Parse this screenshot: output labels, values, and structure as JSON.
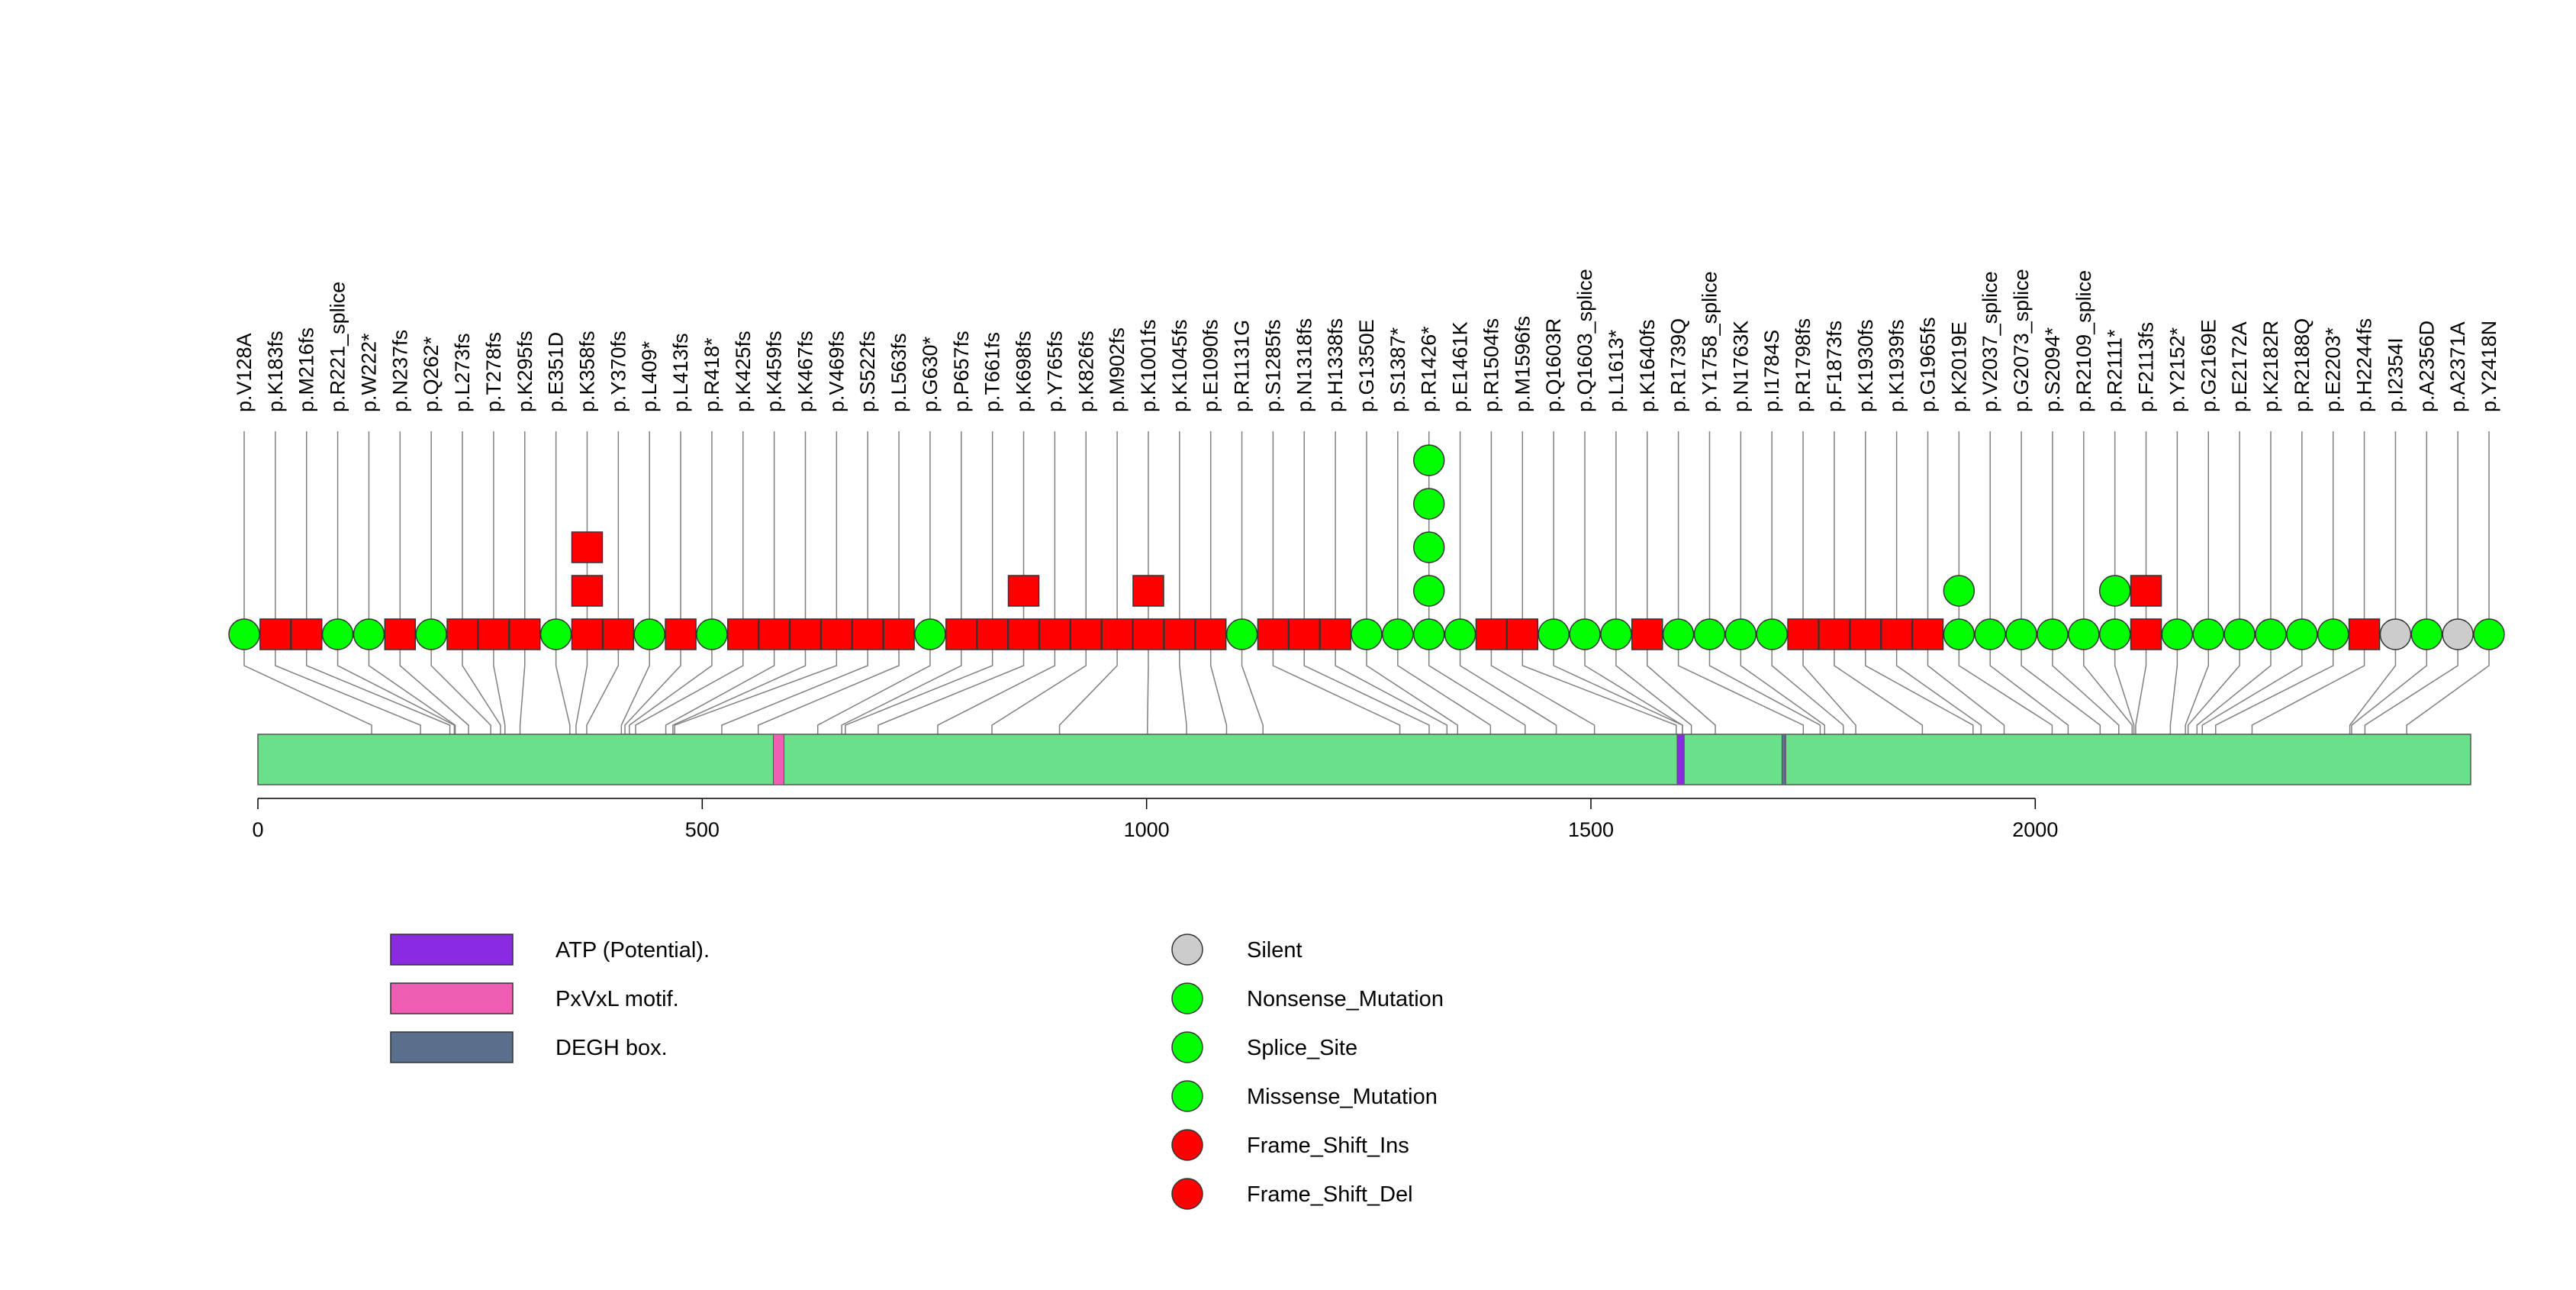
{
  "chart_data": {
    "type": "lollipop",
    "protein_length": 2490,
    "x_ticks": [
      0,
      500,
      1000,
      1500,
      2000
    ],
    "colors": {
      "backbone": "#69e089",
      "missense": "#00ff00",
      "frameshift": "#ff0000",
      "silent": "#cccccc",
      "atp": "#8a2be2",
      "pxvxl": "#ee5fb4",
      "degh": "#5a6f8c",
      "line": "#808080"
    },
    "domains": [
      {
        "name": "ATP (Potential).",
        "start": 1597,
        "end": 1605,
        "color": "#8a2be2"
      },
      {
        "name": "PxVxL motif.",
        "start": 580,
        "end": 592,
        "color": "#ee5fb4"
      },
      {
        "name": "DEGH box.",
        "start": 1715,
        "end": 1719,
        "color": "#5a6f8c"
      }
    ],
    "mutations": [
      {
        "label": "p.V128A",
        "pos": 128,
        "stack": [
          "missense"
        ]
      },
      {
        "label": "p.K183fs",
        "pos": 183,
        "stack": [
          "frameshift"
        ]
      },
      {
        "label": "p.M216fs",
        "pos": 216,
        "stack": [
          "frameshift"
        ]
      },
      {
        "label": "p.R221_splice",
        "pos": 221,
        "stack": [
          "missense"
        ]
      },
      {
        "label": "p.W222*",
        "pos": 222,
        "stack": [
          "missense"
        ]
      },
      {
        "label": "p.N237fs",
        "pos": 237,
        "stack": [
          "frameshift"
        ]
      },
      {
        "label": "p.Q262*",
        "pos": 262,
        "stack": [
          "missense"
        ]
      },
      {
        "label": "p.L273fs",
        "pos": 273,
        "stack": [
          "frameshift"
        ]
      },
      {
        "label": "p.T278fs",
        "pos": 278,
        "stack": [
          "frameshift"
        ]
      },
      {
        "label": "p.K295fs",
        "pos": 295,
        "stack": [
          "frameshift"
        ]
      },
      {
        "label": "p.E351D",
        "pos": 351,
        "stack": [
          "missense"
        ]
      },
      {
        "label": "p.K358fs",
        "pos": 358,
        "stack": [
          "frameshift",
          "frameshift",
          "frameshift"
        ]
      },
      {
        "label": "p.Y370fs",
        "pos": 370,
        "stack": [
          "frameshift"
        ]
      },
      {
        "label": "p.L409*",
        "pos": 409,
        "stack": [
          "missense"
        ]
      },
      {
        "label": "p.L413fs",
        "pos": 413,
        "stack": [
          "frameshift"
        ]
      },
      {
        "label": "p.R418*",
        "pos": 418,
        "stack": [
          "missense"
        ]
      },
      {
        "label": "p.K425fs",
        "pos": 425,
        "stack": [
          "frameshift"
        ]
      },
      {
        "label": "p.K459fs",
        "pos": 459,
        "stack": [
          "frameshift"
        ]
      },
      {
        "label": "p.K467fs",
        "pos": 467,
        "stack": [
          "frameshift"
        ]
      },
      {
        "label": "p.V469fs",
        "pos": 469,
        "stack": [
          "frameshift"
        ]
      },
      {
        "label": "p.S522fs",
        "pos": 522,
        "stack": [
          "frameshift"
        ]
      },
      {
        "label": "p.L563fs",
        "pos": 563,
        "stack": [
          "frameshift"
        ]
      },
      {
        "label": "p.G630*",
        "pos": 630,
        "stack": [
          "missense"
        ]
      },
      {
        "label": "p.P657fs",
        "pos": 657,
        "stack": [
          "frameshift"
        ]
      },
      {
        "label": "p.T661fs",
        "pos": 661,
        "stack": [
          "frameshift"
        ]
      },
      {
        "label": "p.K698fs",
        "pos": 698,
        "stack": [
          "frameshift",
          "frameshift"
        ]
      },
      {
        "label": "p.Y765fs",
        "pos": 765,
        "stack": [
          "frameshift"
        ]
      },
      {
        "label": "p.K826fs",
        "pos": 826,
        "stack": [
          "frameshift"
        ]
      },
      {
        "label": "p.M902fs",
        "pos": 902,
        "stack": [
          "frameshift"
        ]
      },
      {
        "label": "p.K1001fs",
        "pos": 1001,
        "stack": [
          "frameshift",
          "frameshift"
        ]
      },
      {
        "label": "p.K1045fs",
        "pos": 1045,
        "stack": [
          "frameshift"
        ]
      },
      {
        "label": "p.E1090fs",
        "pos": 1090,
        "stack": [
          "frameshift"
        ]
      },
      {
        "label": "p.R1131G",
        "pos": 1131,
        "stack": [
          "missense"
        ]
      },
      {
        "label": "p.S1285fs",
        "pos": 1285,
        "stack": [
          "frameshift"
        ]
      },
      {
        "label": "p.N1318fs",
        "pos": 1318,
        "stack": [
          "frameshift"
        ]
      },
      {
        "label": "p.H1338fs",
        "pos": 1338,
        "stack": [
          "frameshift"
        ]
      },
      {
        "label": "p.G1350E",
        "pos": 1350,
        "stack": [
          "missense"
        ]
      },
      {
        "label": "p.S1387*",
        "pos": 1387,
        "stack": [
          "missense"
        ]
      },
      {
        "label": "p.R1426*",
        "pos": 1426,
        "stack": [
          "missense",
          "missense",
          "missense",
          "missense",
          "missense"
        ]
      },
      {
        "label": "p.E1461K",
        "pos": 1461,
        "stack": [
          "missense"
        ]
      },
      {
        "label": "p.R1504fs",
        "pos": 1504,
        "stack": [
          "frameshift"
        ]
      },
      {
        "label": "p.M1596fs",
        "pos": 1596,
        "stack": [
          "frameshift"
        ]
      },
      {
        "label": "p.Q1603R",
        "pos": 1603,
        "stack": [
          "missense"
        ]
      },
      {
        "label": "p.Q1603_splice",
        "pos": 1603,
        "stack": [
          "missense"
        ]
      },
      {
        "label": "p.L1613*",
        "pos": 1613,
        "stack": [
          "missense"
        ]
      },
      {
        "label": "p.K1640fs",
        "pos": 1640,
        "stack": [
          "frameshift"
        ]
      },
      {
        "label": "p.R1739Q",
        "pos": 1739,
        "stack": [
          "missense"
        ]
      },
      {
        "label": "p.Y1758_splice",
        "pos": 1758,
        "stack": [
          "missense"
        ]
      },
      {
        "label": "p.N1763K",
        "pos": 1763,
        "stack": [
          "missense"
        ]
      },
      {
        "label": "p.I1784S",
        "pos": 1784,
        "stack": [
          "missense"
        ]
      },
      {
        "label": "p.R1798fs",
        "pos": 1798,
        "stack": [
          "frameshift"
        ]
      },
      {
        "label": "p.F1873fs",
        "pos": 1873,
        "stack": [
          "frameshift"
        ]
      },
      {
        "label": "p.K1930fs",
        "pos": 1930,
        "stack": [
          "frameshift"
        ]
      },
      {
        "label": "p.K1939fs",
        "pos": 1939,
        "stack": [
          "frameshift"
        ]
      },
      {
        "label": "p.G1965fs",
        "pos": 1965,
        "stack": [
          "frameshift"
        ]
      },
      {
        "label": "p.K2019E",
        "pos": 2019,
        "stack": [
          "missense",
          "missense"
        ]
      },
      {
        "label": "p.V2037_splice",
        "pos": 2037,
        "stack": [
          "missense"
        ]
      },
      {
        "label": "p.G2073_splice",
        "pos": 2073,
        "stack": [
          "missense"
        ]
      },
      {
        "label": "p.S2094*",
        "pos": 2094,
        "stack": [
          "missense"
        ]
      },
      {
        "label": "p.R2109_splice",
        "pos": 2109,
        "stack": [
          "missense"
        ]
      },
      {
        "label": "p.R2111*",
        "pos": 2111,
        "stack": [
          "missense",
          "missense"
        ]
      },
      {
        "label": "p.F2113fs",
        "pos": 2113,
        "stack": [
          "frameshift",
          "frameshift"
        ]
      },
      {
        "label": "p.Y2152*",
        "pos": 2152,
        "stack": [
          "missense"
        ]
      },
      {
        "label": "p.G2169E",
        "pos": 2169,
        "stack": [
          "missense"
        ]
      },
      {
        "label": "p.E2172A",
        "pos": 2172,
        "stack": [
          "missense"
        ]
      },
      {
        "label": "p.K2182R",
        "pos": 2182,
        "stack": [
          "missense"
        ]
      },
      {
        "label": "p.R2188Q",
        "pos": 2188,
        "stack": [
          "missense"
        ]
      },
      {
        "label": "p.E2203*",
        "pos": 2203,
        "stack": [
          "missense"
        ]
      },
      {
        "label": "p.H2244fs",
        "pos": 2244,
        "stack": [
          "frameshift"
        ]
      },
      {
        "label": "p.I2354I",
        "pos": 2354,
        "stack": [
          "silent"
        ]
      },
      {
        "label": "p.A2356D",
        "pos": 2356,
        "stack": [
          "missense"
        ]
      },
      {
        "label": "p.A2371A",
        "pos": 2371,
        "stack": [
          "silent"
        ]
      },
      {
        "label": "p.Y2418N",
        "pos": 2418,
        "stack": [
          "missense"
        ]
      }
    ],
    "legend": {
      "domains": [
        {
          "label": "ATP (Potential).",
          "color": "#8a2be2"
        },
        {
          "label": "PxVxL motif.",
          "color": "#ee5fb4"
        },
        {
          "label": "DEGH box.",
          "color": "#5a6f8c"
        }
      ],
      "mutation_types": [
        {
          "label": "Silent",
          "color": "#cccccc"
        },
        {
          "label": "Nonsense_Mutation",
          "color": "#00ff00"
        },
        {
          "label": "Splice_Site",
          "color": "#00ff00"
        },
        {
          "label": "Missense_Mutation",
          "color": "#00ff00"
        },
        {
          "label": "Frame_Shift_Ins",
          "color": "#ff0000"
        },
        {
          "label": "Frame_Shift_Del",
          "color": "#ff0000"
        }
      ]
    },
    "xlabel": "",
    "ylabel": ""
  }
}
